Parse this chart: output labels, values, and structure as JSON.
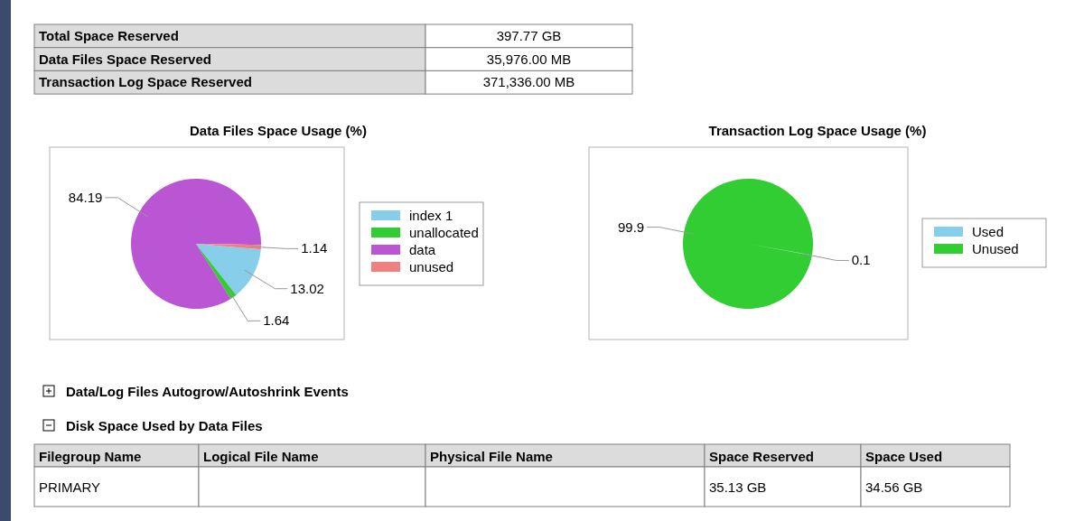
{
  "chart_data": [
    {
      "type": "other",
      "annotations": [
        "Total Space Reserved",
        "397.77 GB",
        "Data Files Space Reserved",
        "35,976.00 MB",
        "Transaction Log Space Reserved",
        "371,336.00 MB"
      ]
    },
    {
      "type": "pie",
      "title": "Data Files Space Usage (%)",
      "categories": [
        "index 1",
        "unallocated",
        "data",
        "unused"
      ],
      "values": [
        13.02,
        1.64,
        84.19,
        1.14
      ],
      "colors": [
        "#87ceeb",
        "#32cd32",
        "#ba55d3",
        "#f08080"
      ],
      "data_labels": true,
      "legend": "right"
    },
    {
      "type": "pie",
      "title": "Transaction Log Space Usage (%)",
      "categories": [
        "Used",
        "Unused"
      ],
      "values": [
        0.1,
        99.9
      ],
      "colors": [
        "#87ceeb",
        "#32cd32"
      ],
      "data_labels": true,
      "legend": "right"
    },
    {
      "type": "other",
      "annotations": [
        "Data/Log Files Autogrow/Autoshrink Events",
        "Disk Space Used by Data Files",
        "Filegroup Name",
        "Logical File Name",
        "Physical File Name",
        "Space Reserved",
        "Space Used",
        "PRIMARY",
        "35.13 GB",
        "34.56 GB"
      ]
    }
  ]
}
